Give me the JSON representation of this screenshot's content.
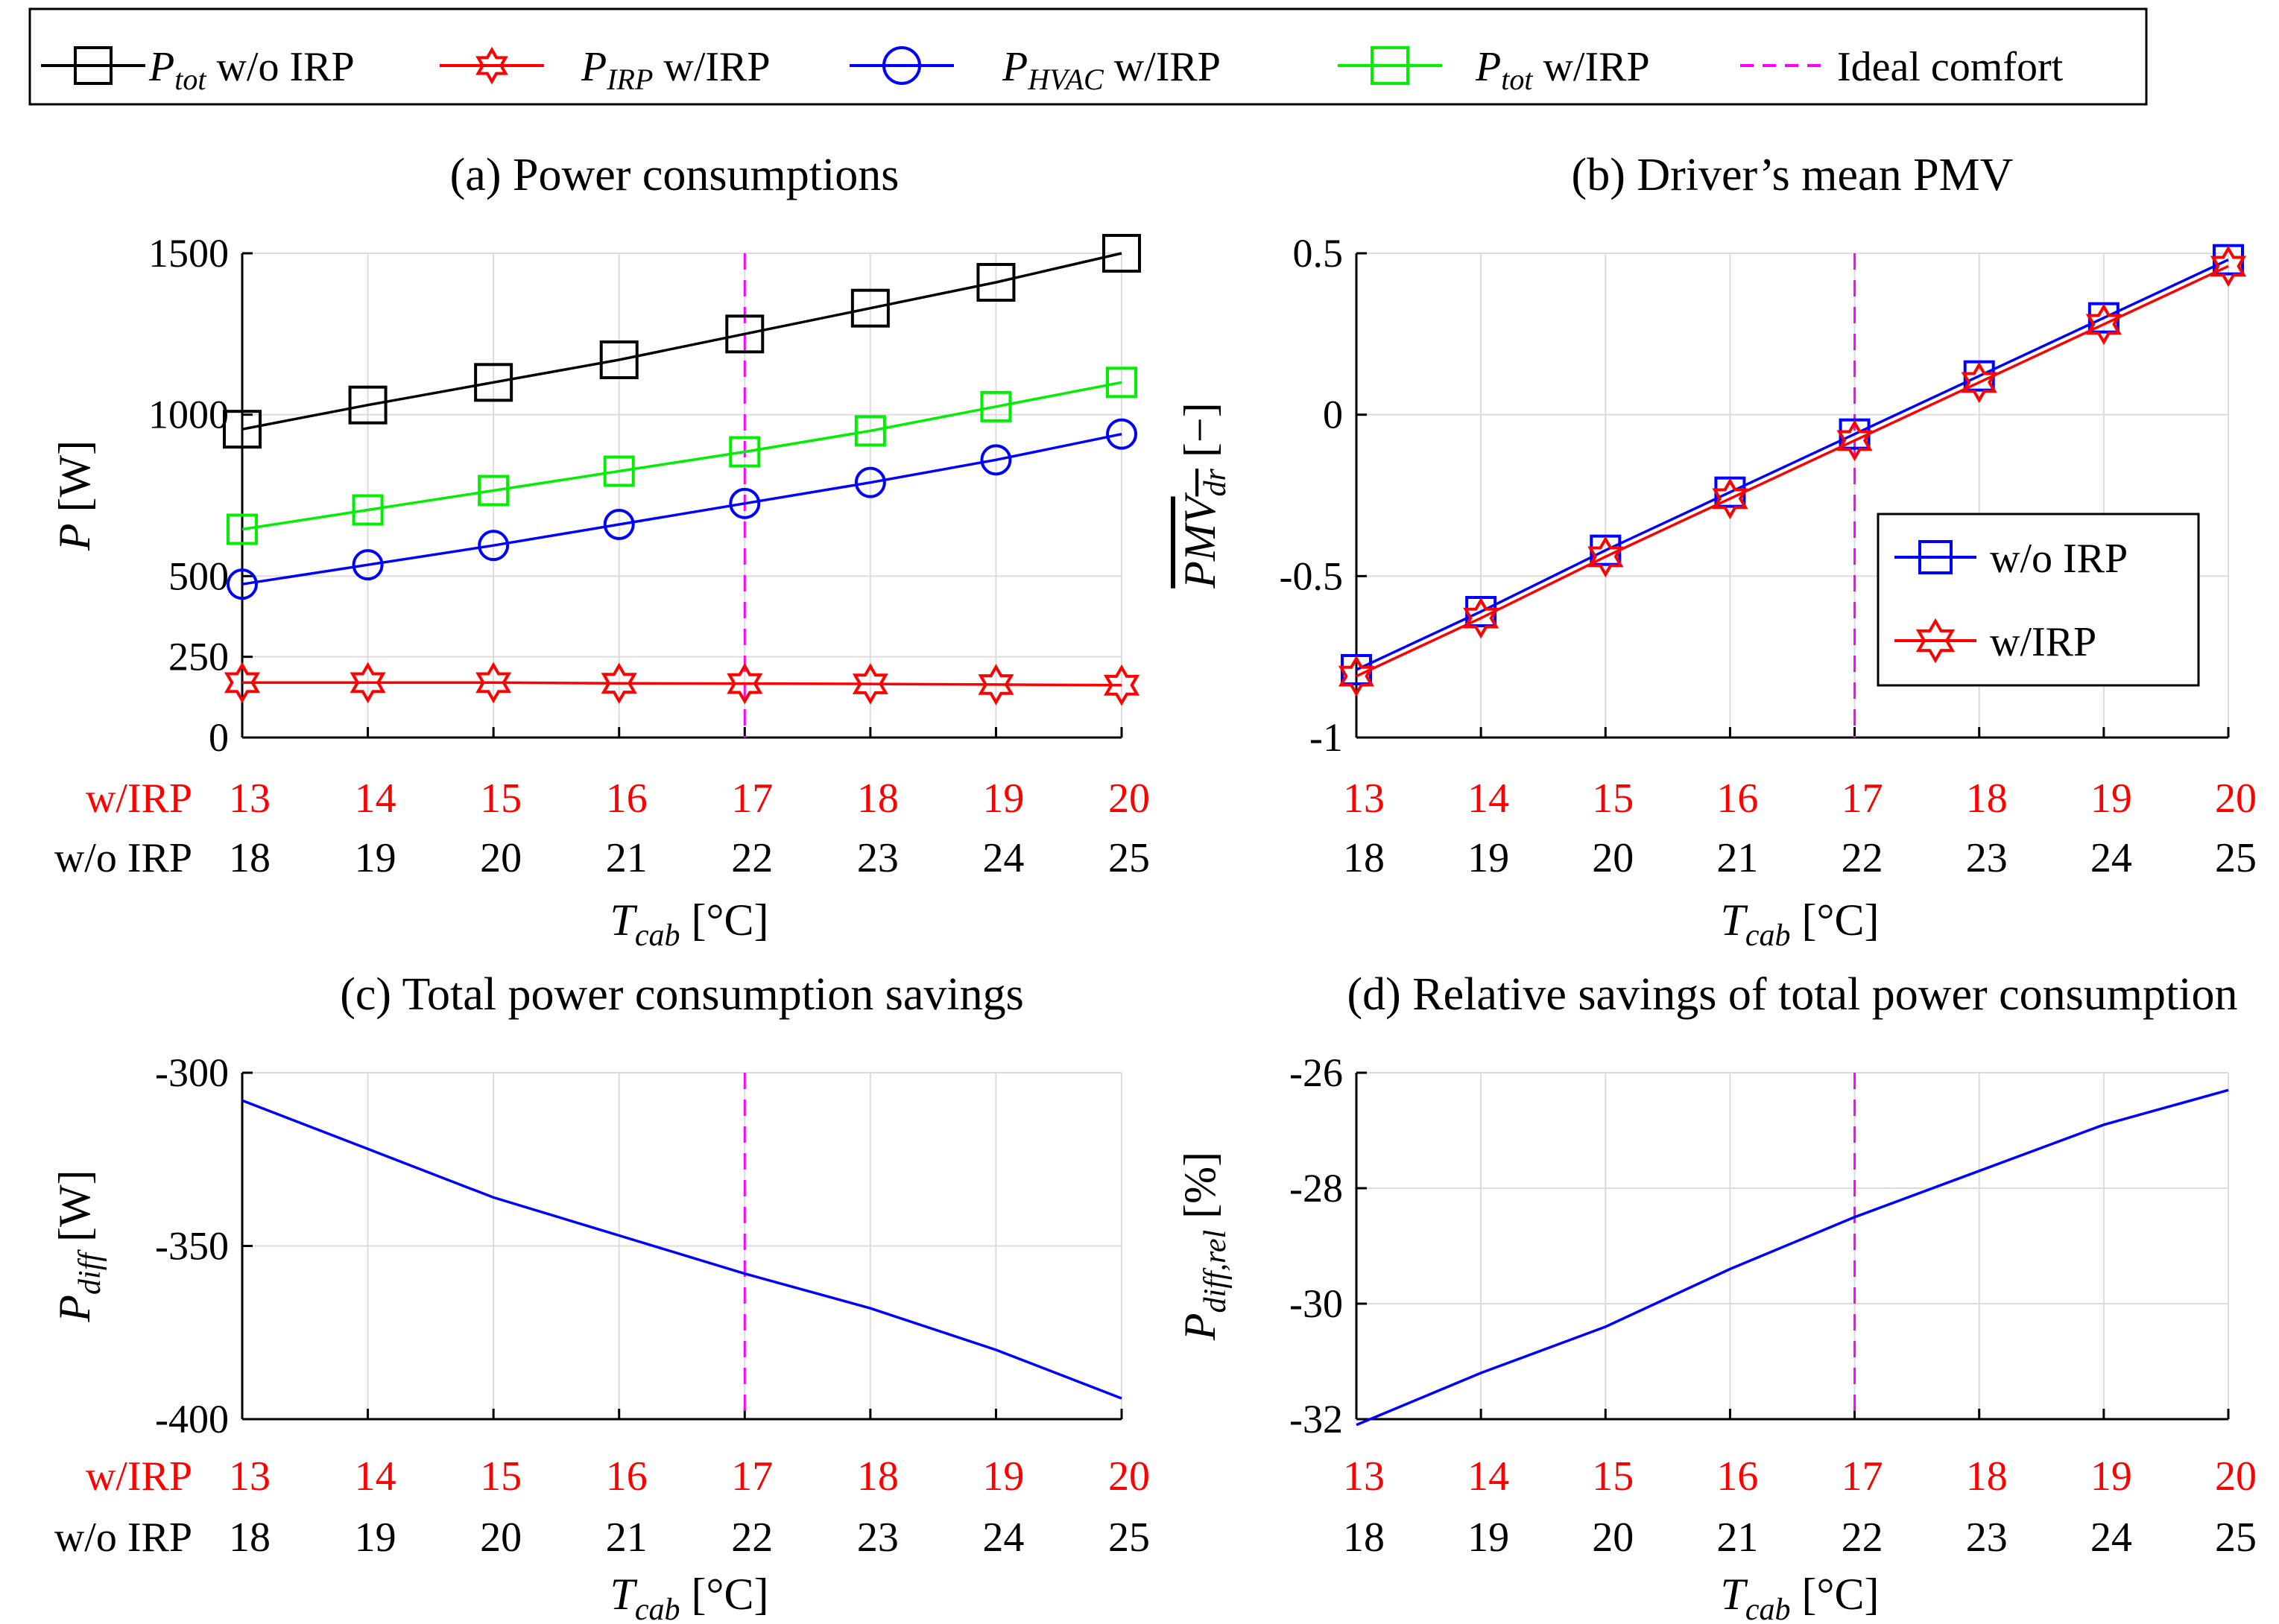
{
  "legend_top": {
    "items": [
      {
        "name": "P",
        "sub": "tot",
        "suffix": "w/o IRP",
        "color": "#000000",
        "marker": "square"
      },
      {
        "name": "P",
        "sub": "IRP",
        "suffix": "w/IRP",
        "color": "#ff0000",
        "marker": "hexagram"
      },
      {
        "name": "P",
        "sub": "HVAC",
        "suffix": "w/IRP",
        "color": "#0000ff",
        "marker": "circle"
      },
      {
        "name": "P",
        "sub": "tot",
        "suffix": "w/IRP",
        "color": "#00ee00",
        "marker": "square"
      },
      {
        "name": "",
        "sub": "",
        "suffix": "Ideal comfort",
        "color": "#ff00ff",
        "marker": "dashed"
      }
    ]
  },
  "x_axis": {
    "row1_label": "w/IRP",
    "row2_label": "w/o IRP",
    "row1_ticks": [
      "13",
      "14",
      "15",
      "16",
      "17",
      "18",
      "19",
      "20"
    ],
    "row2_ticks": [
      "18",
      "19",
      "20",
      "21",
      "22",
      "23",
      "24",
      "25"
    ],
    "label_main": "T",
    "label_sub": "cab",
    "label_unit": "[°C]",
    "ideal_comfort_x": 17
  },
  "colors": {
    "black": "#000000",
    "red": "#ff0000",
    "blue": "#0000ff",
    "green": "#00ee00",
    "magenta": "#ff00ff",
    "grid": "#dcdcdc"
  },
  "chart_data": [
    {
      "id": "a",
      "type": "line",
      "title": "(a) Power consumptions",
      "ylabel_main": "P",
      "ylabel_sub": "",
      "ylabel_unit": "[W]",
      "x": [
        13,
        14,
        15,
        16,
        17,
        18,
        19,
        20
      ],
      "xlim": [
        13,
        20
      ],
      "ylim": [
        0,
        1500
      ],
      "yticks": [
        0,
        250,
        500,
        1000,
        1500
      ],
      "series": [
        {
          "name": "P_tot w/o IRP",
          "color": "#000000",
          "marker": "square",
          "values": [
            955,
            1030,
            1100,
            1170,
            1250,
            1330,
            1410,
            1500
          ]
        },
        {
          "name": "P_tot w/IRP",
          "color": "#00ee00",
          "marker": "square",
          "values": [
            645,
            705,
            765,
            825,
            885,
            950,
            1025,
            1100
          ]
        },
        {
          "name": "P_HVAC w/IRP",
          "color": "#0000ff",
          "marker": "circle",
          "values": [
            475,
            535,
            595,
            660,
            725,
            790,
            860,
            940
          ]
        },
        {
          "name": "P_IRP w/IRP",
          "color": "#ff0000",
          "marker": "hexagram",
          "values": [
            170,
            170,
            170,
            168,
            167,
            166,
            164,
            162
          ]
        }
      ]
    },
    {
      "id": "b",
      "type": "line",
      "title": "(b) Driver’s mean PMV",
      "ylabel_main": "PMV",
      "ylabel_sub": "dr",
      "ylabel_unit": "[−]",
      "x": [
        13,
        14,
        15,
        16,
        17,
        18,
        19,
        20
      ],
      "xlim": [
        13,
        20
      ],
      "ylim": [
        -1,
        0.5
      ],
      "yticks": [
        -1,
        -0.5,
        0,
        0.5
      ],
      "ytick_labels": [
        "-1",
        "-0.5",
        "0",
        "0.5"
      ],
      "legend": [
        "w/o IRP",
        "w/IRP"
      ],
      "series": [
        {
          "name": "w/o IRP",
          "color": "#0000ff",
          "marker": "square",
          "values": [
            -0.79,
            -0.61,
            -0.42,
            -0.24,
            -0.06,
            0.12,
            0.3,
            0.48
          ]
        },
        {
          "name": "w/IRP",
          "color": "#ff0000",
          "marker": "hexagram",
          "values": [
            -0.81,
            -0.63,
            -0.44,
            -0.26,
            -0.08,
            0.1,
            0.28,
            0.46
          ]
        }
      ]
    },
    {
      "id": "c",
      "type": "line",
      "title": "(c) Total power consumption savings",
      "ylabel_main": "P",
      "ylabel_sub": "diff",
      "ylabel_unit": "[W]",
      "x": [
        13,
        14,
        15,
        16,
        17,
        18,
        19,
        20
      ],
      "xlim": [
        13,
        20
      ],
      "ylim": [
        -400,
        -300
      ],
      "yticks": [
        -400,
        -350,
        -300
      ],
      "ytick_labels": [
        "-400",
        "-350",
        "-300"
      ],
      "series": [
        {
          "name": "P_diff",
          "color": "#0000ff",
          "marker": "none",
          "values": [
            -308,
            -322,
            -336,
            -347,
            -358,
            -368,
            -380,
            -394
          ]
        }
      ]
    },
    {
      "id": "d",
      "type": "line",
      "title": "(d) Relative savings of total power consumption",
      "ylabel_main": "P",
      "ylabel_sub": "diff,rel",
      "ylabel_unit": "[%]",
      "x": [
        13,
        14,
        15,
        16,
        17,
        18,
        19,
        20
      ],
      "xlim": [
        13,
        20
      ],
      "ylim": [
        -32,
        -26
      ],
      "yticks": [
        -32,
        -30,
        -28,
        -26
      ],
      "ytick_labels": [
        "-32",
        "-30",
        "-28",
        "-26"
      ],
      "series": [
        {
          "name": "P_diff,rel",
          "color": "#0000ff",
          "marker": "none",
          "values": [
            -32.1,
            -31.2,
            -30.4,
            -29.4,
            -28.5,
            -27.7,
            -26.9,
            -26.3
          ]
        }
      ]
    }
  ]
}
